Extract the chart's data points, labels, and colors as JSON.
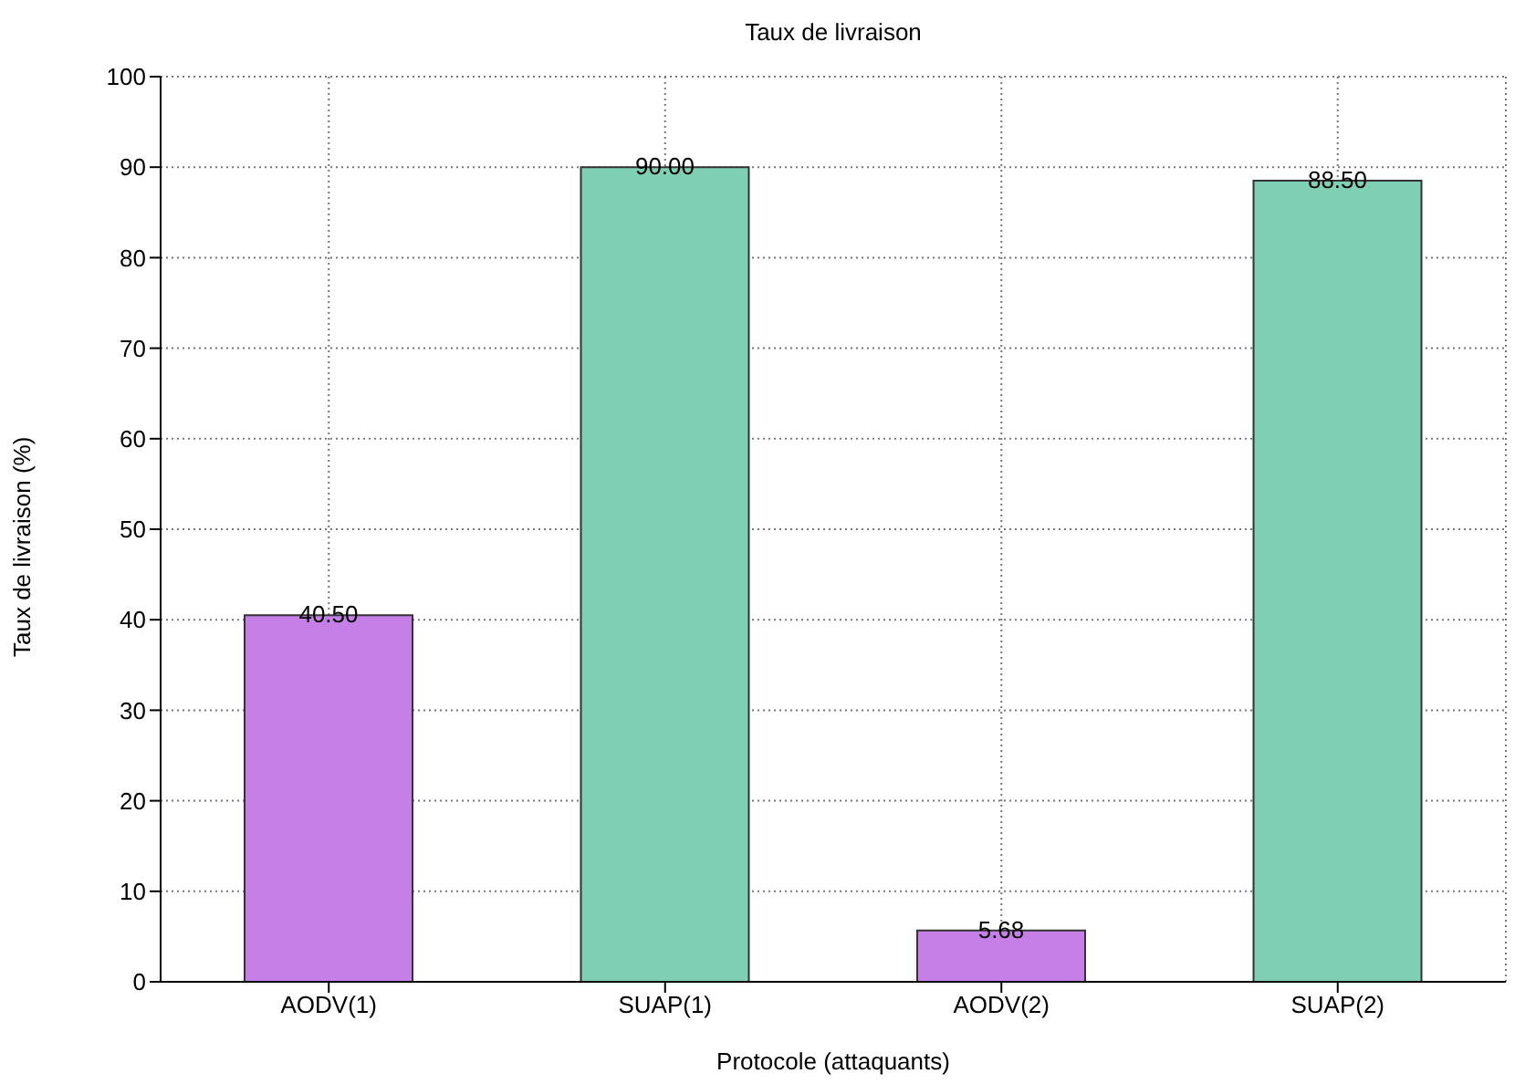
{
  "chart_data": {
    "type": "bar",
    "title": "Taux de livraison",
    "xlabel": "Protocole (attaquants)",
    "ylabel": "Taux de livraison (%)",
    "categories": [
      "AODV(1)",
      "SUAP(1)",
      "AODV(2)",
      "SUAP(2)"
    ],
    "values": [
      40.5,
      90,
      5.68,
      88.5
    ],
    "colors": [
      "#c77fe8",
      "#7fcfb5",
      "#c77fe8",
      "#7fcfb5"
    ],
    "value_labels": [
      "40.50",
      "90.00",
      "5.68",
      "88.50"
    ],
    "ylim": [
      0,
      100
    ],
    "yticks": [
      0,
      10,
      20,
      30,
      40,
      50,
      60,
      70,
      80,
      90,
      100
    ],
    "grid": true
  }
}
